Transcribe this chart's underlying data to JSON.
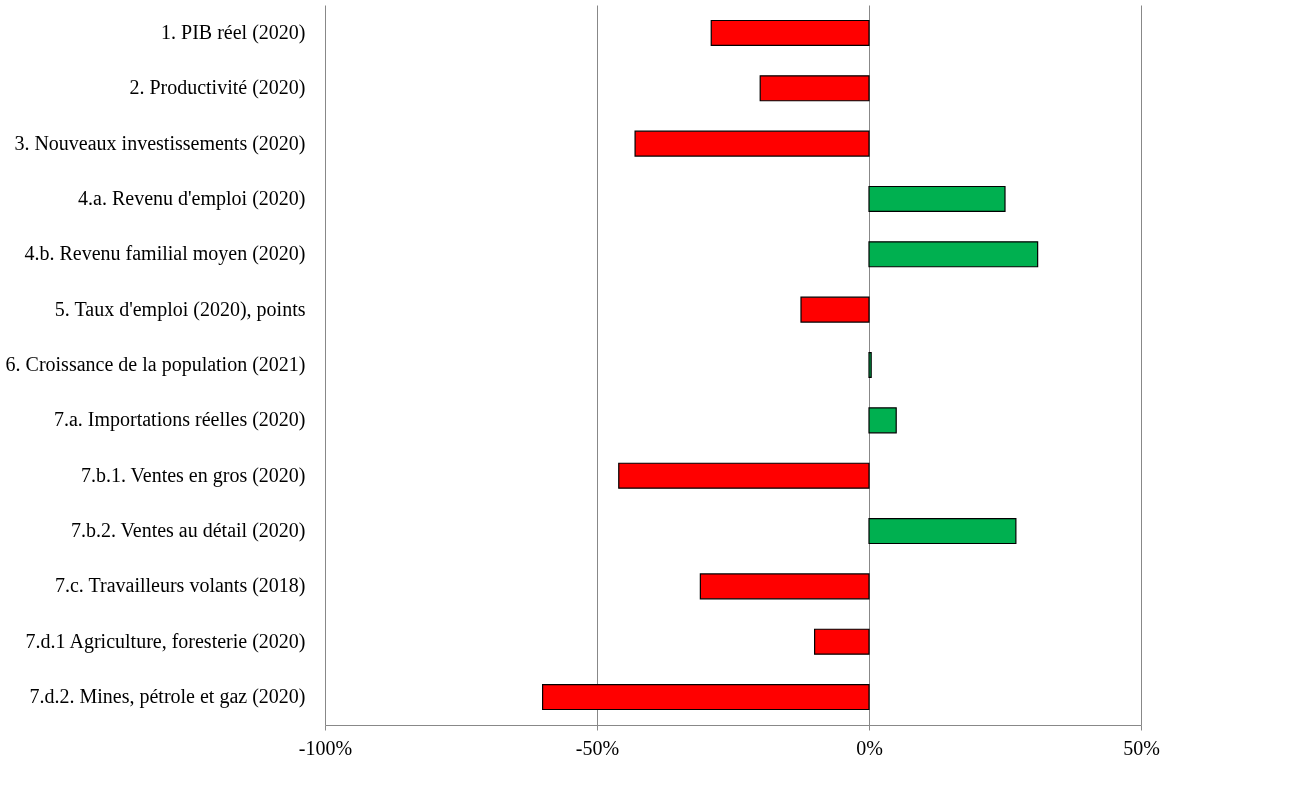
{
  "chart_data": {
    "type": "bar",
    "orientation": "horizontal",
    "categories": [
      "1. PIB réel  (2020)",
      "2. Productivité (2020)",
      "3. Nouveaux investissements (2020)",
      "4.a. Revenu d'emploi (2020)",
      "4.b. Revenu familial moyen (2020)",
      "5. Taux d'emploi (2020), points",
      "6. Croissance de la population (2021)",
      "7.a. Importations réelles (2020)",
      "7.b.1. Ventes en gros (2020)",
      "7.b.2. Ventes au détail (2020)",
      "7.c. Travailleurs volants (2018)",
      "7.d.1 Agriculture, foresterie (2020)",
      "7.d.2. Mines, pétrole et gaz (2020)"
    ],
    "values": [
      -29,
      -20,
      -43,
      25,
      31,
      -12.5,
      0.4,
      5,
      -46,
      27,
      -31,
      -10,
      -60
    ],
    "colors": [
      "#ff0000",
      "#ff0000",
      "#ff0000",
      "#00b050",
      "#00b050",
      "#ff0000",
      "#00b050",
      "#00b050",
      "#ff0000",
      "#00b050",
      "#ff0000",
      "#ff0000",
      "#ff0000"
    ],
    "xlim": [
      -100,
      50
    ],
    "xticks": [
      {
        "value": -100,
        "label": "-100%"
      },
      {
        "value": -50,
        "label": "-50%"
      },
      {
        "value": 0,
        "label": "0%"
      },
      {
        "value": 50,
        "label": "50%"
      }
    ],
    "grid": "x"
  }
}
